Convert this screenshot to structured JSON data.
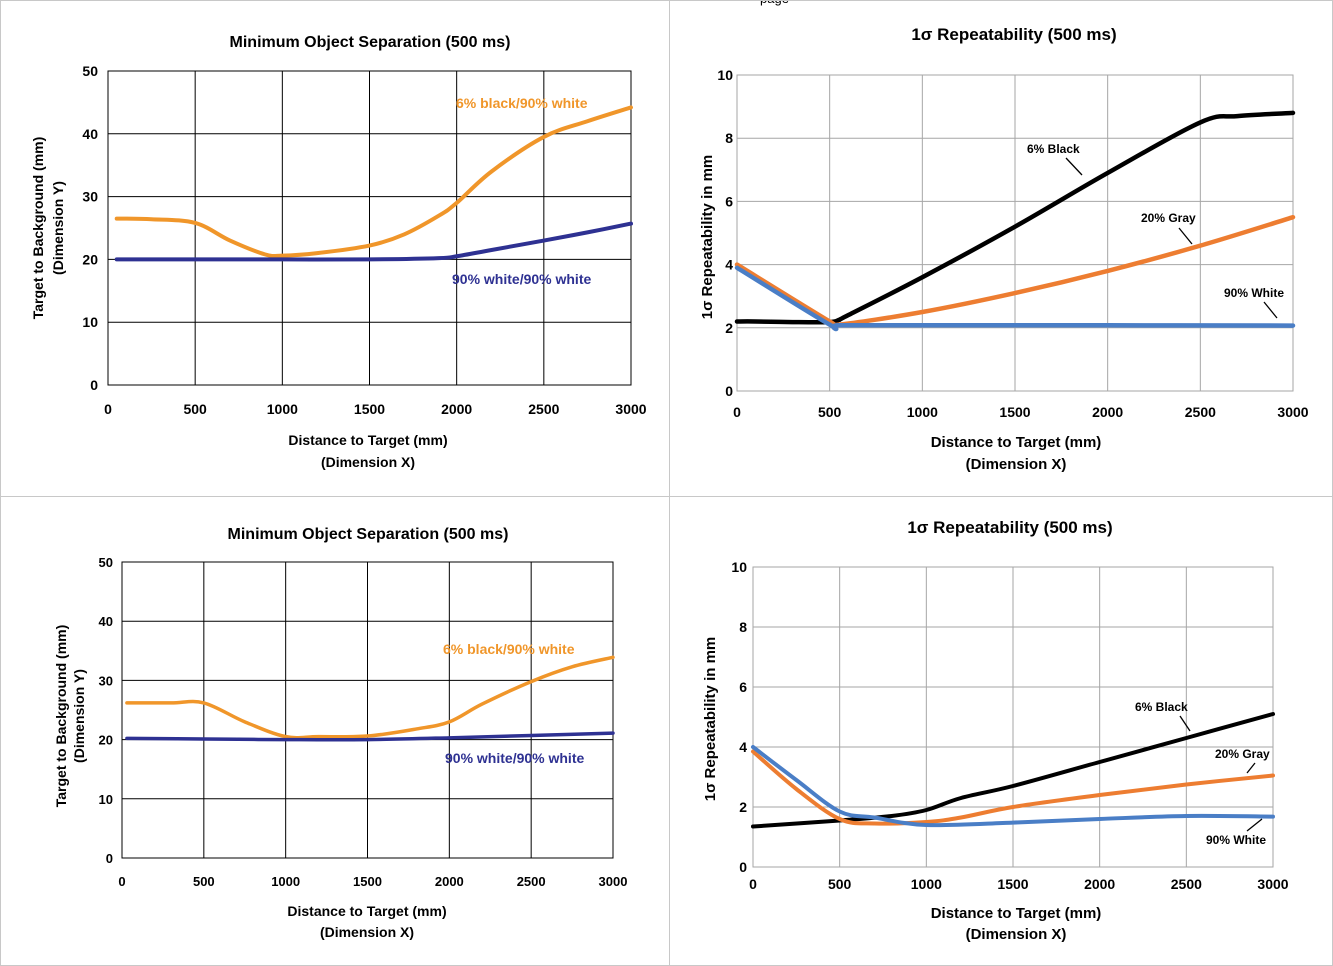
{
  "page": {
    "cut_label": "page"
  },
  "colors": {
    "orange_mos": "#f0962a",
    "navy": "#2e3192",
    "black": "#000000",
    "orange_rep": "#ed7d31",
    "blue_rep": "#4a7ec6",
    "grid": "#000000",
    "grid_light": "#a6a6a6",
    "cell_border": "#c8c8c8"
  },
  "chart_data": [
    {
      "type": "line",
      "title": "Minimum Object Separation (500 ms)",
      "xlabel": "Distance to Target (mm)",
      "xlabel2": "(Dimension  X)",
      "ylabel": "Target to Background (mm)",
      "ylabel2": "(Dimension Y)",
      "xlim": [
        0,
        3000
      ],
      "ylim": [
        0,
        50
      ],
      "xticks": [
        "0",
        "500",
        "1000",
        "1500",
        "2000",
        "2500",
        "3000"
      ],
      "yticks": [
        "0",
        "10",
        "20",
        "30",
        "40",
        "50"
      ],
      "grid": true,
      "annotations": [
        "6% black/90% white",
        "90% white/90% white"
      ],
      "series": [
        {
          "name": "6% black/90% white",
          "color": "#f0962a",
          "x": [
            50,
            250,
            500,
            700,
            900,
            1000,
            1200,
            1500,
            1700,
            1900,
            2000,
            2200,
            2500,
            2750,
            3000
          ],
          "y": [
            26.5,
            26.4,
            25.8,
            23,
            20.8,
            20.6,
            21.0,
            22.2,
            24,
            27,
            29,
            34,
            39.5,
            42,
            44.2
          ]
        },
        {
          "name": "90% white/90% white",
          "color": "#2e3192",
          "x": [
            50,
            500,
            1000,
            1500,
            1900,
            2000,
            2200,
            2500,
            2750,
            3000
          ],
          "y": [
            20,
            20,
            20,
            20,
            20.2,
            20.5,
            21.5,
            23,
            24.3,
            25.7
          ]
        }
      ]
    },
    {
      "type": "line",
      "title": "1σ Repeatability (500 ms)",
      "xlabel": "Distance to Target (mm)",
      "xlabel2": "(Dimension X)",
      "ylabel": "1σ Repeatability in mm",
      "xlim": [
        0,
        3000
      ],
      "ylim": [
        0,
        10
      ],
      "xticks": [
        "0",
        "500",
        "1000",
        "1500",
        "2000",
        "2500",
        "3000"
      ],
      "yticks": [
        "0",
        "2",
        "4",
        "6",
        "8",
        "10"
      ],
      "grid": true,
      "annotations": [
        "6% Black",
        "20% Gray",
        "90% White"
      ],
      "series": [
        {
          "name": "6% Black",
          "color": "#000000",
          "x": [
            0,
            100,
            300,
            500,
            550,
            600,
            1000,
            1500,
            2000,
            2500,
            2700,
            3000
          ],
          "y": [
            2.2,
            2.2,
            2.18,
            2.18,
            2.25,
            2.4,
            3.6,
            5.2,
            6.9,
            8.5,
            8.7,
            8.8
          ]
        },
        {
          "name": "20% Gray",
          "color": "#ed7d31",
          "x": [
            0,
            500,
            550,
            1000,
            1500,
            2000,
            2500,
            3000
          ],
          "y": [
            4.0,
            2.2,
            2.1,
            2.5,
            3.1,
            3.8,
            4.6,
            5.5
          ]
        },
        {
          "name": "90% White",
          "color": "#4a7ec6",
          "x": [
            0,
            500,
            550,
            1000,
            2000,
            3000
          ],
          "y": [
            3.9,
            2.1,
            2.08,
            2.08,
            2.08,
            2.07
          ]
        }
      ]
    },
    {
      "type": "line",
      "title": "Minimum Object Separation (500 ms)",
      "xlabel": "Distance to Target (mm)",
      "xlabel2": "(Dimension  X)",
      "ylabel": "Target to Background (mm)",
      "ylabel2": "(Dimension Y)",
      "xlim": [
        0,
        3000
      ],
      "ylim": [
        0,
        50
      ],
      "xticks": [
        "0",
        "500",
        "1000",
        "1500",
        "2000",
        "2500",
        "3000"
      ],
      "yticks": [
        "0",
        "10",
        "20",
        "30",
        "40",
        "50"
      ],
      "grid": true,
      "annotations": [
        "6% black/90% white",
        "90% white/90% white"
      ],
      "series": [
        {
          "name": "6% black/90% white",
          "color": "#f0962a",
          "x": [
            30,
            300,
            500,
            750,
            1000,
            1200,
            1500,
            1800,
            2000,
            2200,
            2500,
            2750,
            3000
          ],
          "y": [
            26.2,
            26.2,
            26.2,
            23,
            20.5,
            20.5,
            20.6,
            21.8,
            23,
            26,
            29.8,
            32.3,
            33.9
          ]
        },
        {
          "name": "90% white/90% white",
          "color": "#2e3192",
          "x": [
            30,
            500,
            1000,
            1500,
            2000,
            2500,
            3000
          ],
          "y": [
            20.2,
            20.1,
            20,
            20,
            20.3,
            20.7,
            21.1
          ]
        }
      ]
    },
    {
      "type": "line",
      "title": "1σ Repeatability (500 ms)",
      "xlabel": "Distance to Target (mm)",
      "xlabel2": "(Dimension X)",
      "ylabel": "1σ Repeatability in mm",
      "xlim": [
        0,
        3000
      ],
      "ylim": [
        0,
        10
      ],
      "xticks": [
        "0",
        "500",
        "1000",
        "1500",
        "2000",
        "2500",
        "3000"
      ],
      "yticks": [
        "0",
        "2",
        "4",
        "6",
        "8",
        "10"
      ],
      "grid": true,
      "annotations": [
        "6% Black",
        "20% Gray",
        "90% White"
      ],
      "series": [
        {
          "name": "6% Black",
          "color": "#000000",
          "x": [
            0,
            500,
            800,
            1000,
            1200,
            1500,
            2000,
            2500,
            3000
          ],
          "y": [
            1.35,
            1.55,
            1.7,
            1.9,
            2.3,
            2.7,
            3.5,
            4.3,
            5.1
          ]
        },
        {
          "name": "20% Gray",
          "color": "#ed7d31",
          "x": [
            0,
            250,
            500,
            700,
            1000,
            1200,
            1500,
            2000,
            2500,
            3000
          ],
          "y": [
            3.85,
            2.6,
            1.6,
            1.45,
            1.5,
            1.65,
            2.0,
            2.4,
            2.75,
            3.05
          ]
        },
        {
          "name": "90% White",
          "color": "#4a7ec6",
          "x": [
            0,
            250,
            500,
            700,
            1000,
            1500,
            2000,
            2500,
            3000
          ],
          "y": [
            4.0,
            2.9,
            1.85,
            1.65,
            1.4,
            1.48,
            1.6,
            1.7,
            1.68
          ]
        }
      ]
    }
  ]
}
